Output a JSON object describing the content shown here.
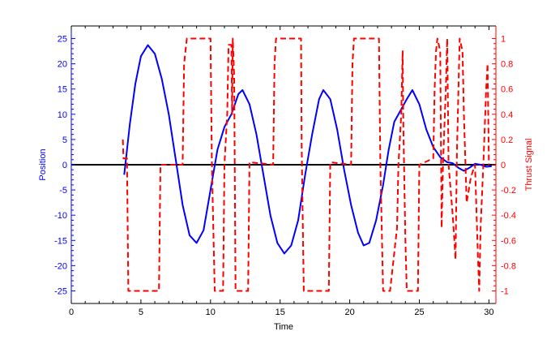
{
  "chart_data": {
    "type": "line",
    "xlabel": "Time",
    "ylabel_left": "Position",
    "ylabel_right": "Thrust Signal",
    "xlim": [
      0,
      30.5
    ],
    "ylim_left": [
      -27.5,
      27.5
    ],
    "ylim_right": [
      -1.1,
      1.1
    ],
    "x_ticks": [
      0,
      5,
      10,
      15,
      20,
      25,
      30
    ],
    "y_left_ticks": [
      -25,
      -20,
      -15,
      -10,
      -5,
      0,
      5,
      10,
      15,
      20,
      25
    ],
    "y_right_ticks": [
      -1,
      -0.8,
      -0.6,
      -0.4,
      -0.2,
      0,
      0.2,
      0.4,
      0.6,
      0.8,
      1
    ],
    "colors": {
      "position": "#0000ff",
      "thrust": "#ff0000",
      "reference": "#000000",
      "left_axis": "#0000ff",
      "right_axis": "#ff0000",
      "bottom_axis": "#000000"
    },
    "series": [
      {
        "id": "reference",
        "axis": "left",
        "style": "solid",
        "points": [
          [
            0,
            0
          ],
          [
            30.5,
            0
          ]
        ]
      },
      {
        "id": "position",
        "axis": "left",
        "style": "solid",
        "points": [
          [
            3.8,
            -2
          ],
          [
            4.2,
            8
          ],
          [
            4.6,
            16
          ],
          [
            5.0,
            21.5
          ],
          [
            5.5,
            23.7
          ],
          [
            6.0,
            22
          ],
          [
            6.5,
            17
          ],
          [
            7.0,
            10
          ],
          [
            7.5,
            1
          ],
          [
            8.0,
            -8
          ],
          [
            8.5,
            -14
          ],
          [
            9.0,
            -15.5
          ],
          [
            9.5,
            -13
          ],
          [
            10.0,
            -5
          ],
          [
            10.5,
            3
          ],
          [
            11.0,
            7.5
          ],
          [
            11.5,
            10
          ],
          [
            12.0,
            14
          ],
          [
            12.3,
            14.8
          ],
          [
            12.8,
            12
          ],
          [
            13.3,
            6
          ],
          [
            13.8,
            -2
          ],
          [
            14.3,
            -10
          ],
          [
            14.8,
            -15.5
          ],
          [
            15.3,
            -17.6
          ],
          [
            15.8,
            -16
          ],
          [
            16.3,
            -11
          ],
          [
            16.8,
            -2
          ],
          [
            17.3,
            6
          ],
          [
            17.8,
            13
          ],
          [
            18.1,
            14.8
          ],
          [
            18.6,
            13
          ],
          [
            19.1,
            7
          ],
          [
            19.6,
            -1
          ],
          [
            20.1,
            -8
          ],
          [
            20.6,
            -13.5
          ],
          [
            21.0,
            -16
          ],
          [
            21.4,
            -15.5
          ],
          [
            21.9,
            -11
          ],
          [
            22.4,
            -4
          ],
          [
            22.8,
            3
          ],
          [
            23.2,
            8.5
          ],
          [
            23.7,
            11
          ],
          [
            24.1,
            13
          ],
          [
            24.5,
            14.8
          ],
          [
            25.0,
            12
          ],
          [
            25.5,
            7
          ],
          [
            26.0,
            3.5
          ],
          [
            26.5,
            1.5
          ],
          [
            27.0,
            0.5
          ],
          [
            27.4,
            0.3
          ],
          [
            27.8,
            -0.6
          ],
          [
            28.2,
            -1.2
          ],
          [
            28.6,
            -0.6
          ],
          [
            29.0,
            0.2
          ],
          [
            29.4,
            0
          ],
          [
            29.8,
            -0.4
          ],
          [
            30.2,
            -0.3
          ]
        ]
      },
      {
        "id": "thrust",
        "axis": "right",
        "style": "dashed",
        "points": [
          [
            3.7,
            0.2
          ],
          [
            3.75,
            0.05
          ],
          [
            4.0,
            0.05
          ],
          [
            4.1,
            -1
          ],
          [
            6.3,
            -1
          ],
          [
            6.4,
            0
          ],
          [
            8.0,
            0
          ],
          [
            8.1,
            0.8
          ],
          [
            8.3,
            1
          ],
          [
            10.0,
            1
          ],
          [
            10.1,
            0
          ],
          [
            10.3,
            -1
          ],
          [
            10.9,
            -1
          ],
          [
            11.0,
            0
          ],
          [
            11.2,
            0.4
          ],
          [
            11.3,
            0.95
          ],
          [
            11.5,
            0.95
          ],
          [
            11.55,
            0.4
          ],
          [
            11.6,
            1
          ],
          [
            11.7,
            0.7
          ],
          [
            11.8,
            -1
          ],
          [
            12.7,
            -1
          ],
          [
            12.8,
            0.02
          ],
          [
            14.5,
            0
          ],
          [
            14.6,
            0.8
          ],
          [
            14.7,
            1
          ],
          [
            16.5,
            1
          ],
          [
            16.55,
            0.15
          ],
          [
            16.7,
            -1
          ],
          [
            18.5,
            -1
          ],
          [
            18.6,
            0.02
          ],
          [
            20.1,
            0
          ],
          [
            20.2,
            0.8
          ],
          [
            20.3,
            1
          ],
          [
            22.1,
            1
          ],
          [
            22.2,
            0
          ],
          [
            22.4,
            -1
          ],
          [
            22.9,
            -1
          ],
          [
            23.0,
            -0.9
          ],
          [
            23.4,
            -0.5
          ],
          [
            23.5,
            0
          ],
          [
            23.7,
            0.4
          ],
          [
            23.8,
            0.9
          ],
          [
            23.85,
            0.3
          ],
          [
            24.0,
            -0.6
          ],
          [
            24.1,
            -1
          ],
          [
            24.9,
            -1
          ],
          [
            25.0,
            0
          ],
          [
            26.0,
            0.05
          ],
          [
            26.1,
            0.6
          ],
          [
            26.2,
            0.9
          ],
          [
            26.3,
            1
          ],
          [
            26.5,
            0.9
          ],
          [
            26.6,
            -0.5
          ],
          [
            26.7,
            0
          ],
          [
            26.9,
            0.6
          ],
          [
            27.0,
            1
          ],
          [
            27.1,
            0
          ],
          [
            27.4,
            -0.4
          ],
          [
            27.6,
            -0.75
          ],
          [
            27.7,
            0.1
          ],
          [
            27.9,
            1
          ],
          [
            28.1,
            0.9
          ],
          [
            28.2,
            0.4
          ],
          [
            28.4,
            -0.3
          ],
          [
            28.7,
            -0.1
          ],
          [
            29.0,
            0
          ],
          [
            29.2,
            -0.7
          ],
          [
            29.3,
            -1
          ],
          [
            29.4,
            -0.5
          ],
          [
            29.6,
            0
          ],
          [
            29.8,
            0.6
          ],
          [
            29.9,
            0.8
          ],
          [
            30.0,
            0
          ]
        ]
      }
    ]
  }
}
